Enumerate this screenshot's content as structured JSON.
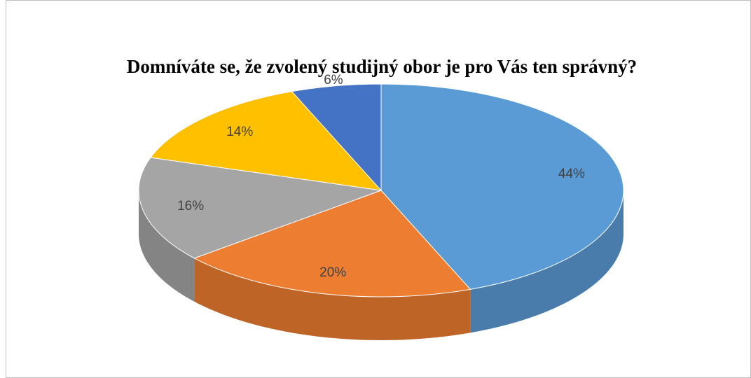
{
  "chart_data": {
    "type": "pie",
    "title": "Domníváte se, že zvolený studijný obor je pro Vás ten správný?",
    "values": [
      44,
      20,
      16,
      14,
      6
    ],
    "value_labels": [
      "44%",
      "20%",
      "16%",
      "14%",
      "6%"
    ],
    "colors": [
      "#5b9bd5",
      "#ed7d31",
      "#a5a5a5",
      "#ffc000",
      "#4472c4"
    ]
  }
}
